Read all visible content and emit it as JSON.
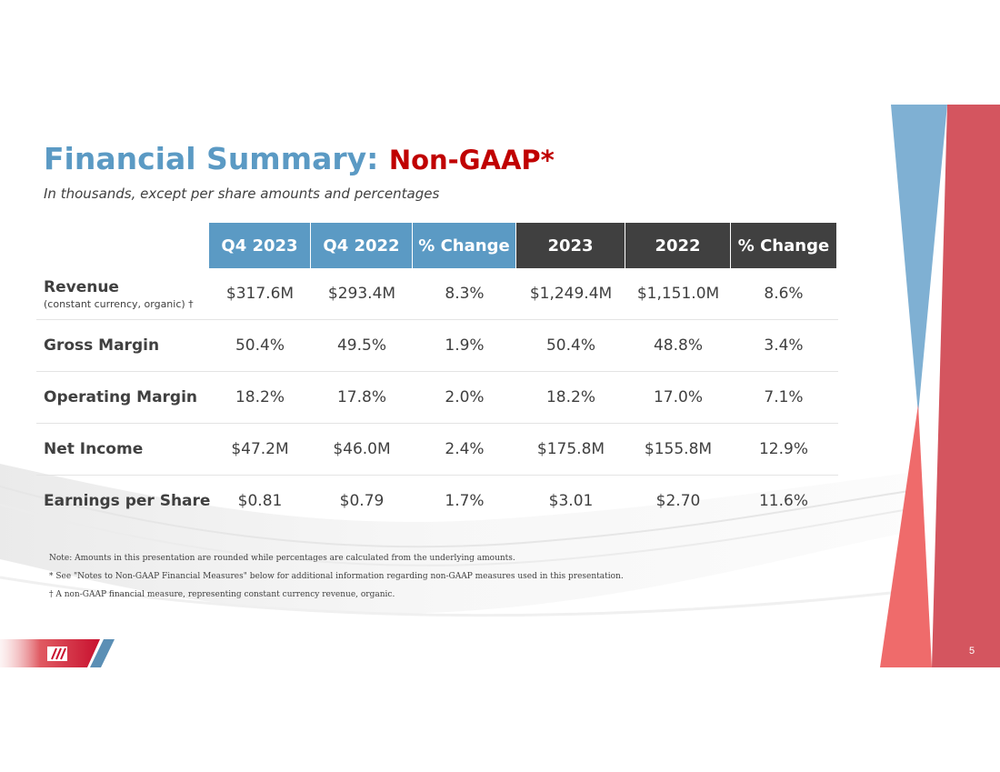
{
  "title": {
    "main": "Financial Summary: ",
    "accent": "Non-GAAP*"
  },
  "subtitle": "In thousands, except per share amounts and percentages",
  "colors": {
    "title_blue": "#5b9ac4",
    "accent_red": "#c00000",
    "header_blue": "#5b9ac4",
    "header_dark": "#404040",
    "decor_red": "#e0505a"
  },
  "table": {
    "headers": [
      "Q4 2023",
      "Q4 2022",
      "% Change",
      "2023",
      "2022",
      "% Change"
    ],
    "rows": [
      {
        "label": "Revenue",
        "sublabel": "(constant currency, organic) †",
        "values": [
          "$317.6M",
          "$293.4M",
          "8.3%",
          "$1,249.4M",
          "$1,151.0M",
          "8.6%"
        ]
      },
      {
        "label": "Gross Margin",
        "sublabel": "",
        "values": [
          "50.4%",
          "49.5%",
          "1.9%",
          "50.4%",
          "48.8%",
          "3.4%"
        ]
      },
      {
        "label": "Operating Margin",
        "sublabel": "",
        "values": [
          "18.2%",
          "17.8%",
          "2.0%",
          "18.2%",
          "17.0%",
          "7.1%"
        ]
      },
      {
        "label": "Net Income",
        "sublabel": "",
        "values": [
          "$47.2M",
          "$46.0M",
          "2.4%",
          "$175.8M",
          "$155.8M",
          "12.9%"
        ]
      },
      {
        "label": "Earnings per Share",
        "sublabel": "",
        "values": [
          "$0.81",
          "$0.79",
          "1.7%",
          "$3.01",
          "$2.70",
          "11.6%"
        ]
      }
    ]
  },
  "notes": [
    "Note: Amounts in this presentation are rounded while percentages are calculated from the underlying amounts.",
    "* See \"Notes to Non-GAAP Financial Measures\" below for additional information regarding non-GAAP measures used in this presentation.",
    "† A non-GAAP financial measure, representing constant currency revenue, organic."
  ],
  "page_number": "5"
}
